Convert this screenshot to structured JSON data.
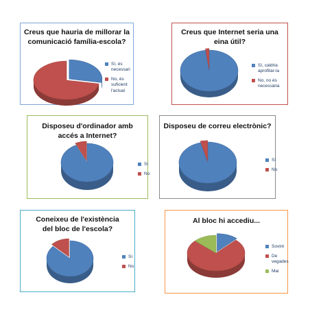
{
  "colors": {
    "blue": "#4f81bd",
    "red": "#c0504d",
    "green": "#9bbb59"
  },
  "chart_data": [
    {
      "type": "pie",
      "title": "Creus que hauria de millorar la comunicació família-escola?",
      "categories": [
        "Sí, és necessari",
        "No, és suficient l'actual"
      ],
      "values": [
        28,
        72
      ],
      "border_color": "#7ea6d6"
    },
    {
      "type": "pie",
      "title": "Creus que Internet seria una eina útil?",
      "categories": [
        "Sí, caldria aprofitar-la",
        "No, no és necessària"
      ],
      "values": [
        98,
        2
      ],
      "border_color": "#c0504d"
    },
    {
      "type": "pie",
      "title": "Disposeu d'ordinador amb accés a Internet?",
      "categories": [
        "Sí",
        "No"
      ],
      "values": [
        93,
        7
      ],
      "border_color": "#9bbb59"
    },
    {
      "type": "pie",
      "title": "Disposeu de correu electrònic?",
      "categories": [
        "Sí",
        "No"
      ],
      "values": [
        96,
        4
      ],
      "border_color": "#8a8a8a"
    },
    {
      "type": "pie",
      "title": "Coneixeu de l'existència del bloc de l'escola?",
      "categories": [
        "Sí",
        "No"
      ],
      "values": [
        87,
        13
      ],
      "border_color": "#4bacc6"
    },
    {
      "type": "pie",
      "title": "Al bloc hi accediu...",
      "categories": [
        "Sovint",
        "De vegades",
        "Mai"
      ],
      "values": [
        12,
        75,
        13
      ],
      "border_color": "#f79646"
    }
  ]
}
